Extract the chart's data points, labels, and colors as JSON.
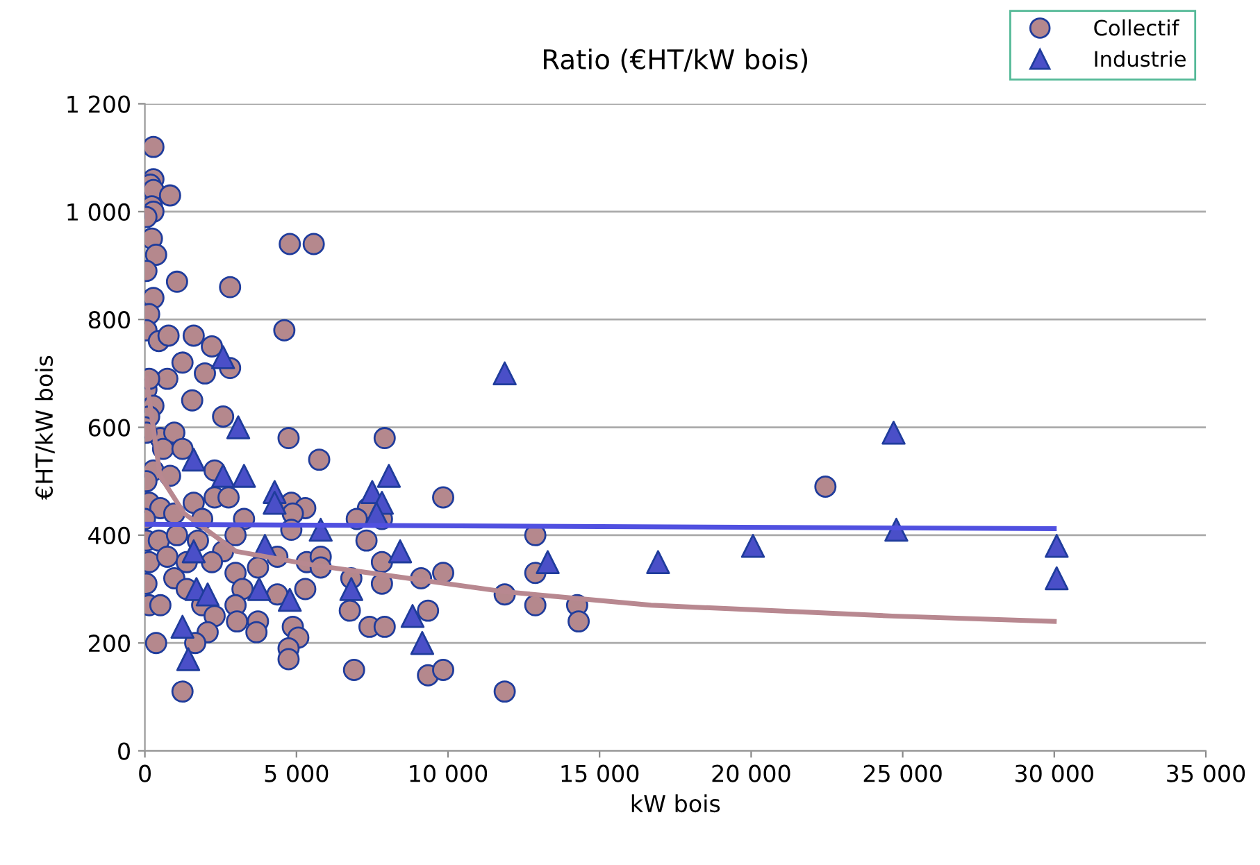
{
  "chart_data": {
    "type": "scatter",
    "title": "Ratio (€HT/kW bois)",
    "xlabel": "kW bois",
    "ylabel": "€HT/kW bois",
    "xlim": [
      0,
      35000
    ],
    "ylim": [
      0,
      1200
    ],
    "xticks": [
      0,
      {
        "value": 5000,
        "label": "5 000"
      },
      {
        "value": 10000,
        "label": "10 000"
      },
      {
        "value": 15000,
        "label": "15 000"
      },
      {
        "value": 20000,
        "label": "20 000"
      },
      {
        "value": 25000,
        "label": "25 000"
      },
      {
        "value": 30000,
        "label": "30 000"
      },
      {
        "value": 35000,
        "label": "35 000"
      }
    ],
    "yticks": [
      0,
      200,
      400,
      600,
      800,
      {
        "value": 1000,
        "label": "1 000"
      },
      {
        "value": 1200,
        "label": "1 200"
      }
    ],
    "grid": "y",
    "legend": "top right",
    "series": [
      {
        "name": "Collectif",
        "color": "#b5888d",
        "marker": "circle",
        "x": [
          280,
          280,
          180,
          280,
          830,
          230,
          280,
          50,
          230,
          370,
          50,
          1060,
          2810,
          4780,
          5570,
          280,
          140,
          50,
          460,
          780,
          1610,
          4600,
          2210,
          1240,
          1980,
          2810,
          740,
          50,
          140,
          280,
          140,
          1560,
          2580,
          0,
          510,
          970,
          4740,
          50,
          600,
          1240,
          5750,
          280,
          830,
          50,
          2300,
          140,
          510,
          970,
          1610,
          2300,
          2760,
          3270,
          0,
          1890,
          4830,
          5290,
          4880,
          4830,
          50,
          460,
          1060,
          1750,
          2990,
          2580,
          2210,
          140,
          740,
          1380,
          2990,
          3730,
          4370,
          5340,
          50,
          970,
          1380,
          3220,
          5290,
          4370,
          140,
          510,
          1890,
          2990,
          2300,
          3040,
          3730,
          2070,
          3680,
          4880,
          5060,
          4740,
          4740,
          370,
          1660,
          1240,
          7910,
          9840,
          7360,
          6990,
          7820,
          7310,
          12880,
          5800,
          5800,
          7820,
          9110,
          9840,
          11870,
          12880,
          12880,
          14260,
          14310,
          6810,
          7820,
          6760,
          7410,
          7910,
          9340,
          6900,
          9340,
          9840,
          11870,
          22450
        ],
        "values": [
          1120,
          1060,
          1050,
          1040,
          1030,
          1010,
          1000,
          990,
          950,
          920,
          890,
          870,
          860,
          940,
          940,
          840,
          810,
          780,
          760,
          770,
          770,
          780,
          750,
          720,
          700,
          710,
          690,
          670,
          690,
          640,
          620,
          650,
          620,
          600,
          580,
          590,
          580,
          590,
          560,
          560,
          540,
          520,
          510,
          500,
          520,
          460,
          450,
          440,
          460,
          470,
          470,
          430,
          430,
          430,
          460,
          450,
          440,
          410,
          390,
          390,
          400,
          390,
          400,
          370,
          350,
          350,
          360,
          350,
          330,
          340,
          360,
          350,
          310,
          320,
          300,
          300,
          300,
          290,
          270,
          270,
          270,
          270,
          250,
          240,
          240,
          220,
          220,
          230,
          210,
          190,
          170,
          200,
          200,
          110,
          580,
          470,
          450,
          430,
          430,
          390,
          400,
          360,
          340,
          350,
          320,
          330,
          290,
          330,
          270,
          270,
          240,
          320,
          310,
          260,
          230,
          230,
          260,
          150,
          140,
          150,
          110,
          490
        ]
      },
      {
        "name": "Industrie",
        "color": "#4a4fc8",
        "marker": "triangle",
        "x": [
          2580,
          3080,
          1610,
          2580,
          3270,
          4280,
          4280,
          1610,
          3960,
          1700,
          2070,
          3770,
          4780,
          1240,
          1430,
          11870,
          8050,
          7500,
          7820,
          7640,
          5800,
          8420,
          13290,
          6810,
          8830,
          9150,
          16930,
          20060,
          24700,
          24790,
          30080,
          30080
        ],
        "values": [
          730,
          600,
          540,
          510,
          510,
          480,
          460,
          370,
          380,
          300,
          290,
          300,
          280,
          230,
          170,
          700,
          510,
          480,
          460,
          440,
          410,
          370,
          350,
          300,
          250,
          200,
          350,
          380,
          590,
          410,
          380,
          320
        ]
      },
      {
        "type": "line",
        "color": "#b88890",
        "marker": "none",
        "x": [
          50,
          500,
          1300,
          3000,
          5500,
          11870,
          16700,
          24650,
          30000
        ],
        "values": [
          690,
          510,
          440,
          370,
          345,
          295,
          270,
          250,
          240
        ]
      },
      {
        "type": "line",
        "color": "#5050e0",
        "marker": "none",
        "x": [
          0,
          30000
        ],
        "values": [
          420,
          412
        ]
      }
    ]
  }
}
